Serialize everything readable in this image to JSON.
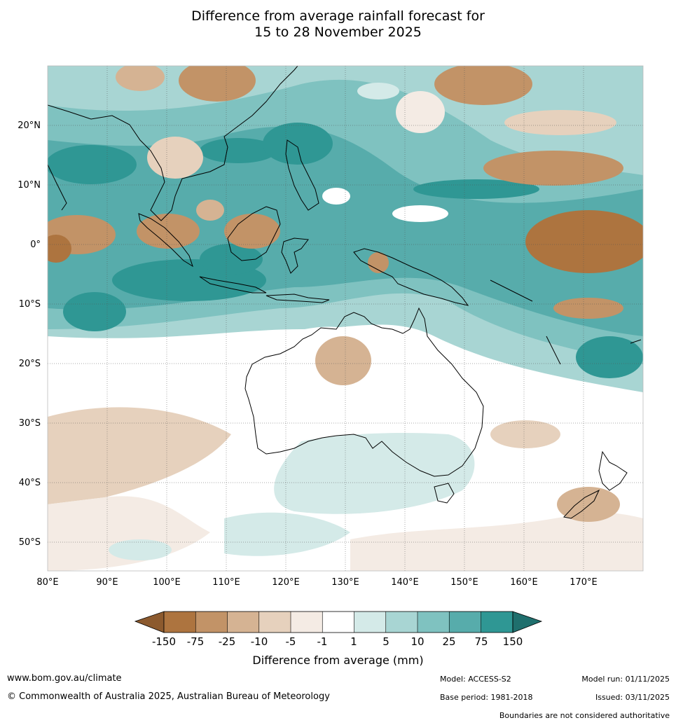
{
  "title": {
    "line1": "Difference from average rainfall forecast for",
    "line2": "15 to 28 November 2025"
  },
  "map": {
    "lat_labels": [
      "20°N",
      "10°N",
      "0°",
      "10°S",
      "20°S",
      "30°S",
      "40°S",
      "50°S"
    ],
    "lon_labels": [
      "80°E",
      "90°E",
      "100°E",
      "110°E",
      "120°E",
      "130°E",
      "140°E",
      "150°E",
      "160°E",
      "170°E"
    ]
  },
  "colorbar": {
    "title": "Difference from average (mm)",
    "tick_labels": [
      "-150",
      "-75",
      "-25",
      "-10",
      "-5",
      "-1",
      "1",
      "5",
      "10",
      "25",
      "75",
      "150"
    ],
    "colors": [
      "#8c5a2e",
      "#ad743f",
      "#c29367",
      "#d5b393",
      "#e6d1bd",
      "#f4ebe4",
      "#ffffff",
      "#d4eae8",
      "#a8d5d3",
      "#7fc2c0",
      "#57acab",
      "#2f9794",
      "#1f6f6d"
    ]
  },
  "footer": {
    "website": "www.bom.gov.au/climate",
    "copyright": "© Commonwealth of Australia 2025, Australian Bureau of Meteorology",
    "model": "Model: ACCESS-S2",
    "model_run": "Model run: 01/11/2025",
    "base_period": "Base period: 1981-2018",
    "issued": "Issued: 03/11/2025",
    "disclaimer": "Boundaries are not considered authoritative"
  }
}
